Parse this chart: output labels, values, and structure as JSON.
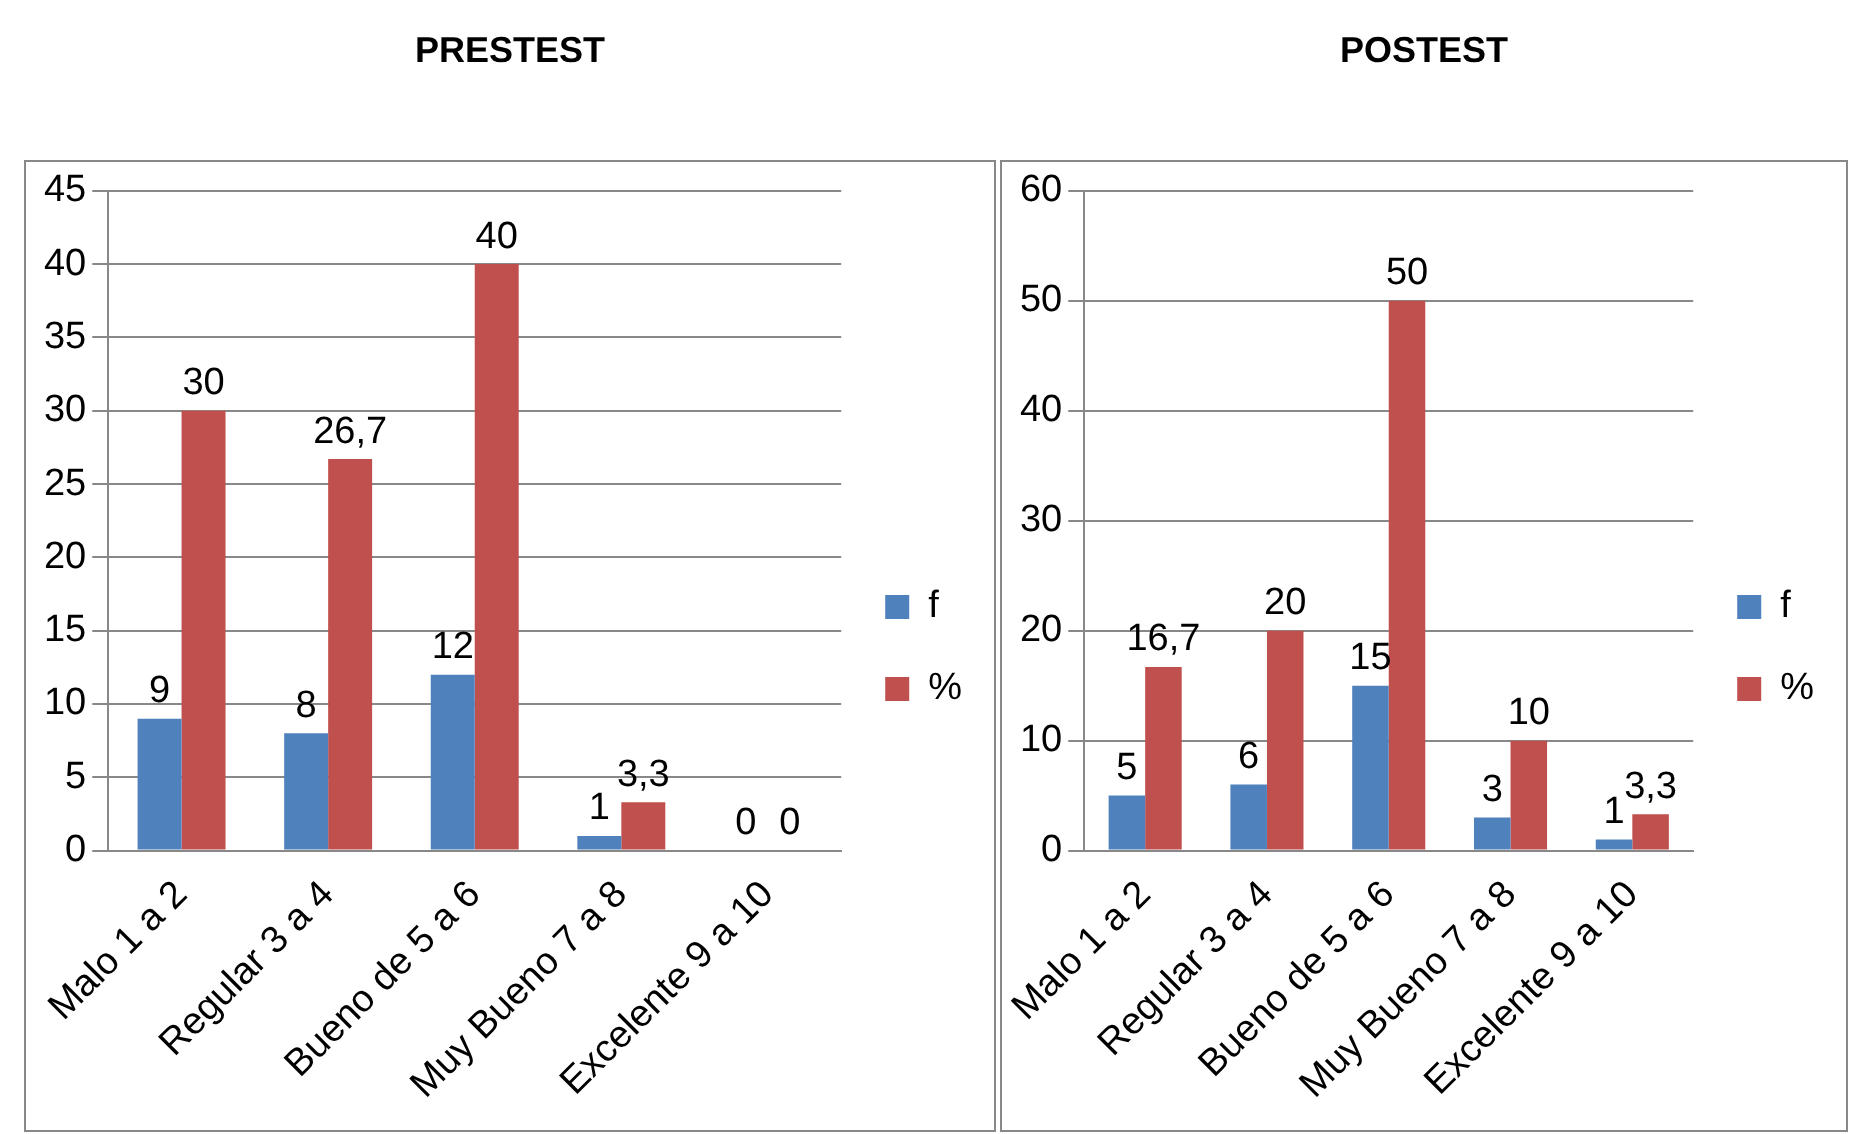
{
  "chart_data": [
    {
      "type": "bar",
      "title": "PRESTEST",
      "categories": [
        "Malo 1 a 2",
        "Regular 3 a 4",
        "Bueno de 5 a 6",
        "Muy Bueno 7 a 8",
        "Excelente 9 a 10"
      ],
      "series": [
        {
          "name": "f",
          "color": "#4f81bd",
          "values": [
            9,
            8,
            12,
            1,
            0
          ],
          "value_labels": [
            "9",
            "8",
            "12",
            "1",
            "0"
          ]
        },
        {
          "name": "%",
          "color": "#c0504d",
          "values": [
            30,
            26.7,
            40,
            3.3,
            0
          ],
          "value_labels": [
            "30",
            "26,7",
            "40",
            "3,3",
            "0"
          ]
        }
      ],
      "ylim": [
        0,
        45
      ],
      "yticks": [
        0,
        5,
        10,
        15,
        20,
        25,
        30,
        35,
        40,
        45
      ],
      "grid": "y",
      "legend": "right"
    },
    {
      "type": "bar",
      "title": "POSTEST",
      "categories": [
        "Malo 1 a 2",
        "Regular 3 a 4",
        "Bueno de 5 a 6",
        "Muy Bueno 7 a 8",
        "Excelente 9 a 10"
      ],
      "series": [
        {
          "name": "f",
          "color": "#4f81bd",
          "values": [
            5,
            6,
            15,
            3,
            1
          ],
          "value_labels": [
            "5",
            "6",
            "15",
            "3",
            "1"
          ]
        },
        {
          "name": "%",
          "color": "#c0504d",
          "values": [
            16.7,
            20,
            50,
            10,
            3.3
          ],
          "value_labels": [
            "16,7",
            "20",
            "50",
            "10",
            "3,3"
          ]
        }
      ],
      "ylim": [
        0,
        60
      ],
      "yticks": [
        0,
        10,
        20,
        30,
        40,
        50,
        60
      ],
      "grid": "y",
      "legend": "right"
    }
  ]
}
